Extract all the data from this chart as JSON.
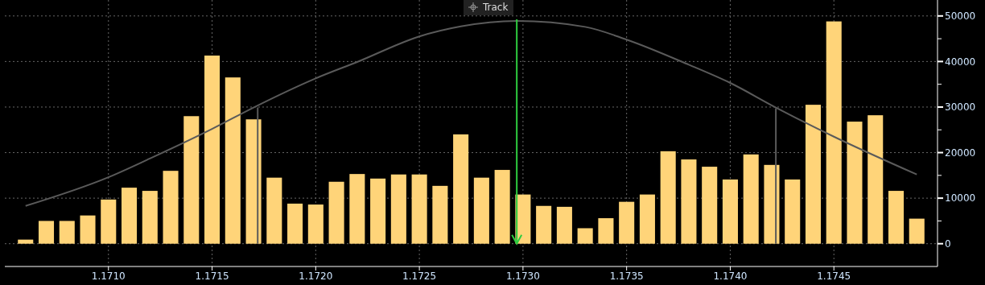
{
  "chart_data": {
    "type": "bar",
    "x": [
      1.1706,
      1.1707,
      1.1708,
      1.1709,
      1.171,
      1.1711,
      1.1712,
      1.1713,
      1.1714,
      1.1715,
      1.1716,
      1.1717,
      1.1718,
      1.1719,
      1.172,
      1.1721,
      1.1722,
      1.1723,
      1.1724,
      1.1725,
      1.1726,
      1.1727,
      1.1728,
      1.1729,
      1.173,
      1.1731,
      1.1732,
      1.1733,
      1.1734,
      1.1735,
      1.1736,
      1.1737,
      1.1738,
      1.1739,
      1.174,
      1.1741,
      1.1742,
      1.1743,
      1.1744,
      1.1745,
      1.1746,
      1.1747,
      1.1748,
      1.1749
    ],
    "series": [
      {
        "color": "#ffd479",
        "values": [
          900,
          5000,
          5000,
          6200,
          9700,
          12300,
          11600,
          16000,
          28000,
          41300,
          36500,
          27300,
          14500,
          8800,
          8600,
          13600,
          15300,
          14300,
          15200,
          15200,
          12700,
          24000,
          14500,
          16200,
          10800,
          8300,
          8100,
          3400,
          5600,
          9200,
          10800,
          20300,
          18500,
          16900,
          14100,
          19600,
          17300,
          14100,
          30500,
          48800,
          26800,
          28200,
          11600,
          5500
        ]
      },
      {
        "type": "line",
        "color": "#5a5a5a",
        "x": [
          1.1706,
          1.171,
          1.1712,
          1.1715,
          1.1717,
          1.172,
          1.1722,
          1.1725,
          1.1727,
          1.17297,
          1.1733,
          1.1735,
          1.1738,
          1.174,
          1.17422,
          1.1745,
          1.1749
        ],
        "values": [
          8300,
          14600,
          18700,
          25200,
          29900,
          36300,
          39900,
          45500,
          47700,
          48900,
          47600,
          44800,
          39300,
          35300,
          29900,
          23500,
          15200
        ]
      },
      {
        "type": "line",
        "color": "#5a5a5a",
        "x": [
          1.17172,
          1.17172
        ],
        "values": [
          0,
          29900
        ]
      },
      {
        "type": "line",
        "color": "#5a5a5a",
        "x": [
          1.17422,
          1.17422
        ],
        "values": [
          0,
          29700
        ]
      }
    ],
    "xlim": [
      1.1705,
      1.175
    ],
    "xticks": [
      {
        "value": 1.171,
        "label": "1.1710"
      },
      {
        "value": 1.1715,
        "label": "1.1715"
      },
      {
        "value": 1.172,
        "label": "1.1720"
      },
      {
        "value": 1.1725,
        "label": "1.1725"
      },
      {
        "value": 1.173,
        "label": "1.1730"
      },
      {
        "value": 1.1735,
        "label": "1.1735"
      },
      {
        "value": 1.174,
        "label": "1.1740"
      },
      {
        "value": 1.1745,
        "label": "1.1745"
      }
    ],
    "ylim": [
      -5000,
      53500
    ],
    "yticks": [
      0,
      {
        "value": 5000,
        "label": null
      },
      10000,
      {
        "value": 15000,
        "label": null
      },
      20000,
      {
        "value": 25000,
        "label": null
      },
      30000,
      {
        "value": 35000,
        "label": null
      },
      40000,
      {
        "value": 45000,
        "label": null
      },
      50000
    ],
    "ref_lines": [
      {
        "axis": "x",
        "value": 1.17297,
        "color": "#2ecc40"
      }
    ],
    "annotations": [
      "Track"
    ],
    "grid": true
  }
}
